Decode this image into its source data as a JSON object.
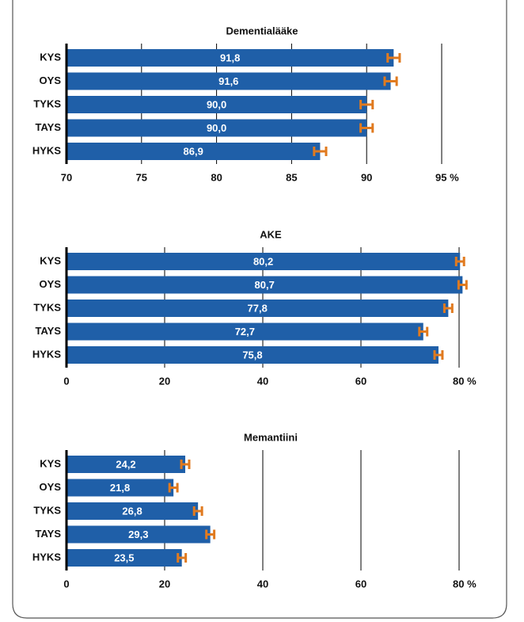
{
  "chart_data": [
    {
      "type": "bar",
      "orientation": "horizontal",
      "title": "Dementialääke",
      "categories": [
        "KYS",
        "OYS",
        "TYKS",
        "TAYS",
        "HYKS"
      ],
      "values": [
        91.8,
        91.6,
        90.0,
        90.0,
        86.9
      ],
      "value_labels": [
        "91,8",
        "91,6",
        "90,0",
        "90,0",
        "86,9"
      ],
      "errors": [
        0.4,
        0.4,
        0.4,
        0.4,
        0.4
      ],
      "color": "#1f5fa8",
      "error_color": "#e07a1f",
      "xlim": [
        70,
        95
      ],
      "xticks": [
        70,
        75,
        80,
        85,
        90,
        {
          "value": 95,
          "label": "95 %"
        }
      ],
      "grid": true
    },
    {
      "type": "bar",
      "orientation": "horizontal",
      "title": "AKE",
      "categories": [
        "KYS",
        "OYS",
        "TYKS",
        "TAYS",
        "HYKS"
      ],
      "values": [
        80.2,
        80.7,
        77.8,
        72.7,
        75.8
      ],
      "value_labels": [
        "80,2",
        "80,7",
        "77,8",
        "72,7",
        "75,8"
      ],
      "errors": [
        0.8,
        0.8,
        0.8,
        0.8,
        0.8
      ],
      "color": "#1f5fa8",
      "error_color": "#e07a1f",
      "xlim": [
        0,
        80
      ],
      "xticks": [
        0,
        20,
        40,
        60,
        {
          "value": 80,
          "label": "80 %"
        }
      ],
      "grid": true
    },
    {
      "type": "bar",
      "orientation": "horizontal",
      "title": "Memantiini",
      "categories": [
        "KYS",
        "OYS",
        "TYKS",
        "TAYS",
        "HYKS"
      ],
      "values": [
        24.2,
        21.8,
        26.8,
        29.3,
        23.5
      ],
      "value_labels": [
        "24,2",
        "21,8",
        "26,8",
        "29,3",
        "23,5"
      ],
      "errors": [
        0.8,
        0.8,
        0.8,
        0.8,
        0.8
      ],
      "color": "#1f5fa8",
      "error_color": "#e07a1f",
      "xlim": [
        0,
        80
      ],
      "xticks": [
        0,
        20,
        40,
        60,
        {
          "value": 80,
          "label": "80 %"
        }
      ],
      "grid": true
    }
  ]
}
